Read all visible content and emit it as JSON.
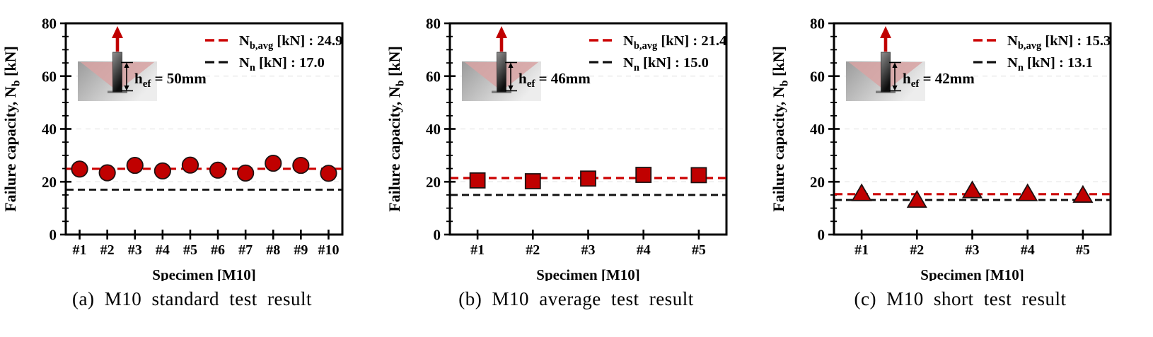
{
  "style": {
    "background": "#ffffff",
    "text_color": "#000000",
    "frame_color": "#000000",
    "grid_color": "#e7e7e7",
    "marker_fill": "#c00000",
    "marker_stroke": "#1f1212",
    "avg_line_color": "#cc0000",
    "nominal_line_color": "#111111",
    "load_arrow_color": "#c00000",
    "cone_color": "#d8a3a3",
    "block_gradient": [
      "#9b9b9b",
      "#ededed"
    ],
    "bolt_gradient": [
      "#8f8f8f",
      "#0d0d0d"
    ],
    "base_plate_color": "#7d7d7d"
  },
  "chart_data": [
    {
      "type": "scatter",
      "marker": "circle",
      "caption": "(a) M10 standard test result",
      "xlabel": "Specimen [M10]",
      "ylabel": {
        "pre": "Failure capacity, N",
        "sub": "b",
        "post": " [kN]"
      },
      "categories": [
        "#1",
        "#2",
        "#3",
        "#4",
        "#5",
        "#6",
        "#7",
        "#8",
        "#9",
        "#10"
      ],
      "values": [
        24.8,
        23.4,
        26.2,
        24.1,
        26.3,
        24.4,
        23.3,
        27.0,
        26.2,
        23.2
      ],
      "ylim": [
        0,
        80
      ],
      "yticks": [
        0,
        20,
        40,
        60,
        80
      ],
      "minor_tick_step": 5,
      "gridlines_at": [
        20,
        40,
        60
      ],
      "grid": "dashed-light",
      "legend_position": "top-right",
      "avg_line": {
        "value": 24.9,
        "legend": {
          "pre": "N",
          "sub": "b,avg",
          "post": " [kN] : 24.9"
        }
      },
      "nominal_line": {
        "value": 17.0,
        "legend": {
          "pre": "N",
          "sub": "n",
          "post": " [kN] : 17.0"
        }
      },
      "inset": {
        "hef_label": {
          "pre": "h",
          "sub": "ef",
          "post": " = 50mm"
        }
      }
    },
    {
      "type": "scatter",
      "marker": "square",
      "caption": "(b) M10 average test result",
      "xlabel": "Specimen [M10]",
      "ylabel": {
        "pre": "Failure capacity, N",
        "sub": "b",
        "post": " [kN]"
      },
      "categories": [
        "#1",
        "#2",
        "#3",
        "#4",
        "#5"
      ],
      "values": [
        20.5,
        20.2,
        21.2,
        22.6,
        22.5
      ],
      "ylim": [
        0,
        80
      ],
      "yticks": [
        0,
        20,
        40,
        60,
        80
      ],
      "minor_tick_step": 5,
      "gridlines_at": [
        20,
        40,
        60
      ],
      "grid": "dashed-light",
      "legend_position": "top-right",
      "avg_line": {
        "value": 21.4,
        "legend": {
          "pre": "N",
          "sub": "b,avg",
          "post": " [kN] : 21.4"
        }
      },
      "nominal_line": {
        "value": 15.0,
        "legend": {
          "pre": "N",
          "sub": "n",
          "post": " [kN] : 15.0"
        }
      },
      "inset": {
        "hef_label": {
          "pre": "h",
          "sub": "ef",
          "post": " = 46mm"
        }
      }
    },
    {
      "type": "scatter",
      "marker": "triangle",
      "caption": "(c) M10 short test result",
      "xlabel": "Specimen [M10]",
      "ylabel": {
        "pre": "Failure capacity, N",
        "sub": "b",
        "post": " [kN]"
      },
      "categories": [
        "#1",
        "#2",
        "#3",
        "#4",
        "#5"
      ],
      "values": [
        15.7,
        13.2,
        16.8,
        15.7,
        15.1
      ],
      "ylim": [
        0,
        80
      ],
      "yticks": [
        0,
        20,
        40,
        60,
        80
      ],
      "minor_tick_step": 5,
      "gridlines_at": [
        20,
        40,
        60
      ],
      "grid": "dashed-light",
      "legend_position": "top-right",
      "avg_line": {
        "value": 15.3,
        "legend": {
          "pre": "N",
          "sub": "b,avg",
          "post": " [kN] : 15.3"
        }
      },
      "nominal_line": {
        "value": 13.1,
        "legend": {
          "pre": "N",
          "sub": "n",
          "post": " [kN] : 13.1"
        }
      },
      "inset": {
        "hef_label": {
          "pre": "h",
          "sub": "ef",
          "post": " = 42mm"
        }
      }
    }
  ]
}
